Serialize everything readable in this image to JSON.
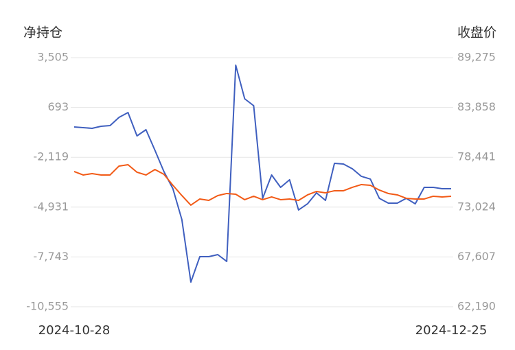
{
  "chart_data": {
    "type": "line",
    "y_label": "净持仓",
    "y2_label": "收盘价",
    "categories": [
      "2024-10-28",
      null,
      null,
      null,
      null,
      null,
      null,
      null,
      null,
      null,
      null,
      null,
      null,
      null,
      null,
      null,
      null,
      null,
      null,
      null,
      null,
      null,
      null,
      null,
      null,
      null,
      null,
      null,
      null,
      null,
      null,
      null,
      null,
      null,
      null,
      null,
      null,
      null,
      null,
      null,
      null,
      null,
      "2024-12-25"
    ],
    "ylim": [
      -10555,
      3505
    ],
    "yticks": [
      {
        "value": -10555,
        "label": "-10,555"
      },
      {
        "value": -7743,
        "label": "-7,743"
      },
      {
        "value": -4931,
        "label": "-4,931"
      },
      {
        "value": -2119,
        "label": "-2,119"
      },
      693,
      {
        "value": 3505,
        "label": "3,505"
      }
    ],
    "y2lim": [
      62190,
      89275
    ],
    "y2ticks": [
      {
        "value": 62190,
        "label": "62,190"
      },
      {
        "value": 67607,
        "label": "67,607"
      },
      {
        "value": 73024,
        "label": "73,024"
      },
      {
        "value": 78441,
        "label": "78,441"
      },
      {
        "value": 83858,
        "label": "83,858"
      },
      {
        "value": 89275,
        "label": "89,275"
      }
    ],
    "grid": true,
    "series": [
      {
        "color": "#3f5fbf",
        "axis": "y",
        "values": [
          -407,
          -445,
          -484,
          -368,
          -329,
          135,
          407,
          -910,
          -562,
          -1724,
          -2924,
          -3892,
          -5635,
          -9160,
          -7727,
          -7727,
          -7611,
          -7998,
          3079,
          1181,
          794,
          -4435,
          -3118,
          -3815,
          -3389,
          -5093,
          -4744,
          -4125,
          -4551,
          -2459,
          -2498,
          -2769,
          -3195,
          -3350,
          -4435,
          -4706,
          -4706,
          -4435,
          -4744,
          -3815,
          -3815,
          -3892,
          -3892
        ]
      },
      {
        "color": "#f25a16",
        "axis": "y2",
        "values": [
          76891,
          76518,
          76668,
          76518,
          76518,
          77488,
          77637,
          76817,
          76518,
          77115,
          76593,
          75399,
          74280,
          73236,
          73907,
          73758,
          74280,
          74504,
          74430,
          73833,
          74206,
          73833,
          74131,
          73833,
          73907,
          73758,
          74355,
          74728,
          74579,
          74803,
          74803,
          75176,
          75474,
          75399,
          74877,
          74504,
          74355,
          73982,
          73907,
          73907,
          74206,
          74131,
          74206
        ]
      }
    ]
  }
}
